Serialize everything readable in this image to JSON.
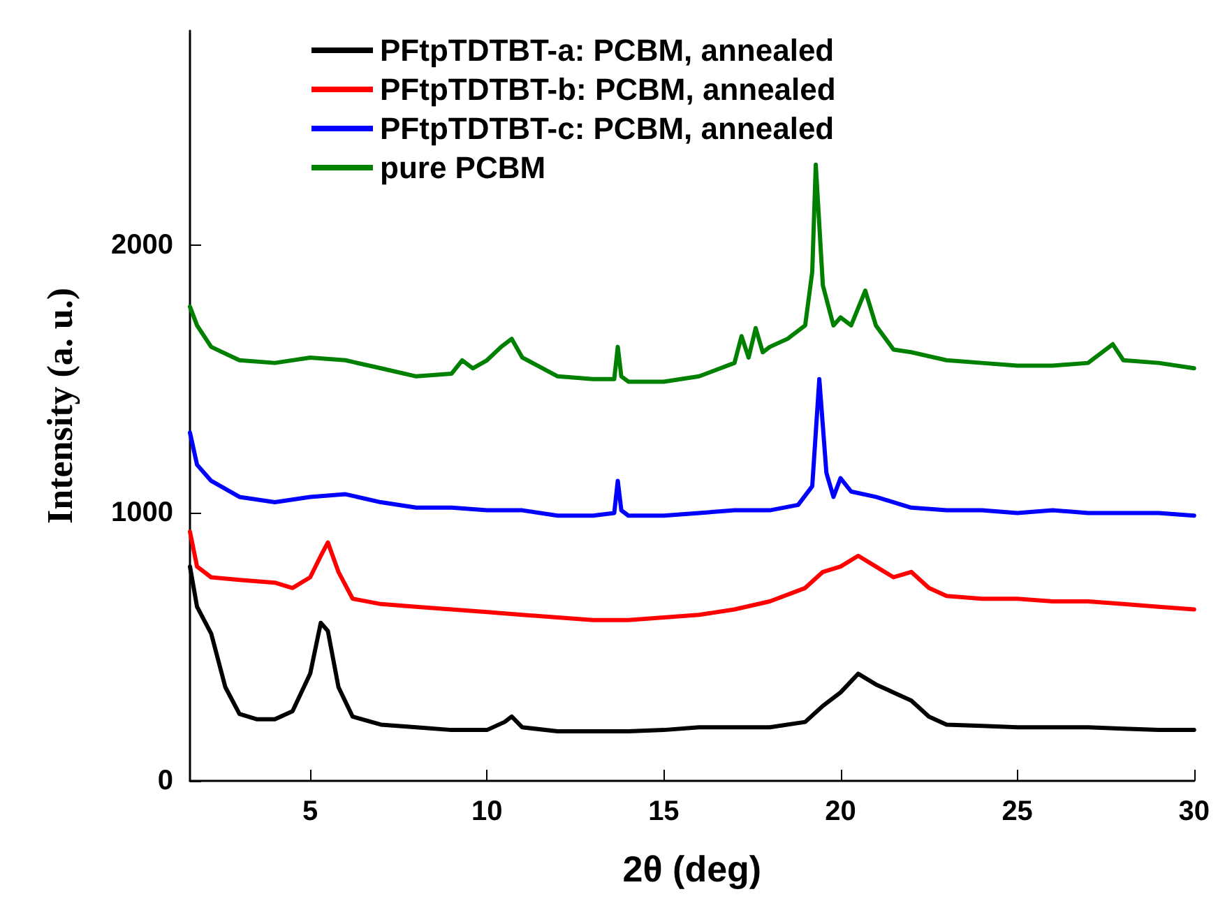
{
  "chart_data": {
    "type": "line",
    "xlabel": "2θ (deg)",
    "ylabel": "Intensity (a. u.)",
    "xlim": [
      1.6,
      30
    ],
    "ylim": [
      0,
      2800
    ],
    "xticks": [
      5,
      10,
      15,
      20,
      25,
      30
    ],
    "yticks": [
      0,
      1000,
      2000
    ],
    "grid": false,
    "legend": "top left",
    "marker": "none",
    "line_style": "solid",
    "x": [
      1.6,
      1.8,
      2.2,
      2.6,
      3,
      3.5,
      4,
      4.5,
      5,
      5.3,
      5.5,
      5.8,
      6.2,
      7,
      8,
      9,
      10,
      10.5,
      10.7,
      11,
      12,
      13,
      14,
      15,
      16,
      17,
      18,
      19,
      19.5,
      20,
      20.5,
      21,
      21.5,
      22,
      22.5,
      23,
      24,
      25,
      26,
      27,
      28,
      29,
      30
    ],
    "series": [
      {
        "name": "PFtpTDTBT-a: PCBM, annealed",
        "color": "#000000",
        "values": [
          800,
          650,
          550,
          350,
          250,
          230,
          230,
          260,
          400,
          590,
          560,
          350,
          240,
          210,
          200,
          190,
          190,
          220,
          240,
          200,
          185,
          185,
          185,
          190,
          200,
          200,
          200,
          220,
          280,
          330,
          400,
          360,
          330,
          300,
          240,
          210,
          205,
          200,
          200,
          200,
          195,
          190,
          190
        ]
      },
      {
        "name": "PFtpTDTBT-b: PCBM, annealed",
        "color": "#ff0000",
        "x": [
          1.6,
          1.8,
          2.2,
          3,
          4,
          4.5,
          5,
          5.3,
          5.5,
          5.8,
          6.2,
          7,
          8,
          9,
          10,
          11,
          12,
          13,
          14,
          15,
          16,
          17,
          18,
          19,
          19.5,
          20,
          20.5,
          21,
          21.5,
          22,
          22.5,
          23,
          24,
          25,
          26,
          27,
          28,
          29,
          30
        ],
        "values": [
          930,
          800,
          760,
          750,
          740,
          720,
          760,
          840,
          890,
          780,
          680,
          660,
          650,
          640,
          630,
          620,
          610,
          600,
          600,
          610,
          620,
          640,
          670,
          720,
          780,
          800,
          840,
          800,
          760,
          780,
          720,
          690,
          680,
          680,
          670,
          670,
          660,
          650,
          640
        ]
      },
      {
        "name": "PFtpTDTBT-c: PCBM, annealed",
        "color": "#0000ff",
        "x": [
          1.6,
          1.8,
          2.2,
          3,
          4,
          5,
          6,
          7,
          8,
          9,
          10,
          11,
          12,
          13,
          13.6,
          13.7,
          13.8,
          14,
          15,
          16,
          17,
          18,
          18.8,
          19.2,
          19.4,
          19.6,
          19.8,
          20,
          20.3,
          21,
          21.5,
          22,
          23,
          24,
          25,
          26,
          27,
          28,
          29,
          30
        ],
        "values": [
          1300,
          1180,
          1120,
          1060,
          1040,
          1060,
          1070,
          1040,
          1020,
          1020,
          1010,
          1010,
          990,
          990,
          1000,
          1120,
          1010,
          990,
          990,
          1000,
          1010,
          1010,
          1030,
          1100,
          1500,
          1150,
          1060,
          1130,
          1080,
          1060,
          1040,
          1020,
          1010,
          1010,
          1000,
          1010,
          1000,
          1000,
          1000,
          990
        ]
      },
      {
        "name": "pure PCBM",
        "color": "#008000",
        "x": [
          1.6,
          1.8,
          2.2,
          3,
          4,
          5,
          6,
          7,
          8,
          9,
          9.3,
          9.6,
          10,
          10.4,
          10.7,
          11,
          12,
          13,
          13.6,
          13.7,
          13.8,
          14,
          15,
          16,
          17,
          17.2,
          17.4,
          17.6,
          17.8,
          18,
          18.5,
          19,
          19.2,
          19.3,
          19.5,
          19.8,
          20,
          20.3,
          20.7,
          21,
          21.5,
          22,
          23,
          24,
          25,
          26,
          27,
          27.7,
          28,
          29,
          30
        ],
        "values": [
          1770,
          1700,
          1620,
          1570,
          1560,
          1580,
          1570,
          1540,
          1510,
          1520,
          1570,
          1540,
          1570,
          1620,
          1650,
          1580,
          1510,
          1500,
          1500,
          1620,
          1510,
          1490,
          1490,
          1510,
          1560,
          1660,
          1580,
          1690,
          1600,
          1620,
          1650,
          1700,
          1900,
          2300,
          1850,
          1700,
          1730,
          1700,
          1830,
          1700,
          1610,
          1600,
          1570,
          1560,
          1550,
          1550,
          1560,
          1630,
          1570,
          1560,
          1540
        ]
      }
    ]
  }
}
